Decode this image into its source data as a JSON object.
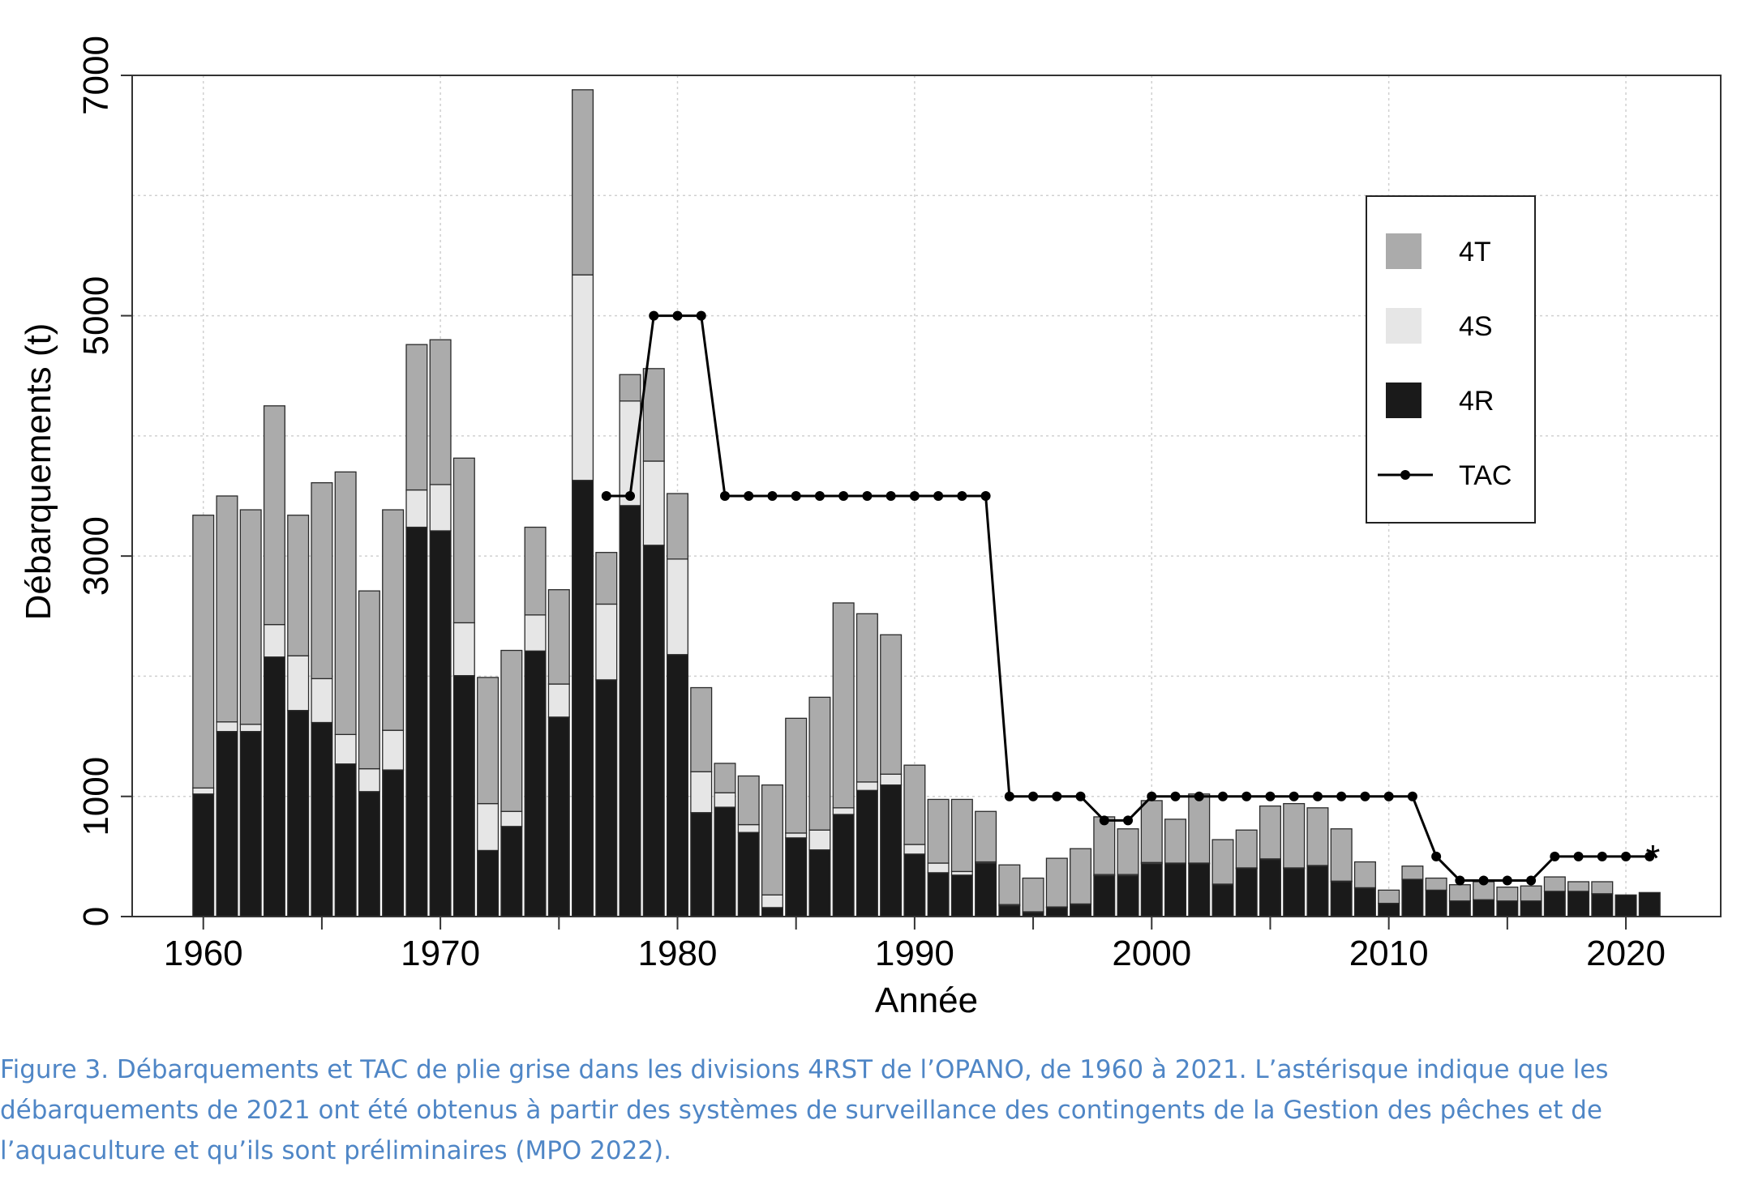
{
  "chart_data": {
    "type": "bar",
    "stacked": true,
    "y_label": "Débarquements (t)",
    "x_label": "Année",
    "caption": "Figure 3. Débarquements et TAC de plie grise dans les divisions 4RST de l’OPANO, de 1960 à 2021. L’astérisque indique que les débarquements de 2021 ont été obtenus à partir des systèmes de surveillance des contingents de la Gestion des pêches et de l’aquaculture et qu’ils sont préliminaires (MPO 2022).",
    "annotation": "*",
    "x": [
      1960,
      1961,
      1962,
      1963,
      1964,
      1965,
      1966,
      1967,
      1968,
      1969,
      1970,
      1971,
      1972,
      1973,
      1974,
      1975,
      1976,
      1977,
      1978,
      1979,
      1980,
      1981,
      1982,
      1983,
      1984,
      1985,
      1986,
      1987,
      1988,
      1989,
      1990,
      1991,
      1992,
      1993,
      1994,
      1995,
      1996,
      1997,
      1998,
      1999,
      2000,
      2001,
      2002,
      2003,
      2004,
      2005,
      2006,
      2007,
      2008,
      2009,
      2010,
      2011,
      2012,
      2013,
      2014,
      2015,
      2016,
      2017,
      2018,
      2019,
      2020,
      2021
    ],
    "series": [
      {
        "name": "4T",
        "color": "#ababab",
        "values": [
          2270,
          1880,
          1785,
          1820,
          1170,
          1630,
          2185,
          1480,
          1835,
          1210,
          1205,
          1370,
          1050,
          1340,
          730,
          785,
          1540,
          430,
          220,
          770,
          545,
          700,
          245,
          405,
          915,
          955,
          1105,
          1705,
          1400,
          1160,
          660,
          530,
          600,
          420,
          330,
          280,
          405,
          460,
          480,
          380,
          515,
          365,
          575,
          370,
          315,
          440,
          535,
          480,
          435,
          215,
          110,
          110,
          100,
          135,
          150,
          115,
          125,
          120,
          80,
          100,
          0,
          0
        ]
      },
      {
        "name": "4S",
        "color": "#e6e6e6",
        "values": [
          50,
          80,
          60,
          270,
          455,
          365,
          245,
          190,
          330,
          310,
          385,
          440,
          390,
          125,
          300,
          275,
          1710,
          630,
          870,
          700,
          795,
          340,
          120,
          65,
          105,
          40,
          165,
          55,
          70,
          90,
          80,
          80,
          30,
          10,
          10,
          5,
          5,
          5,
          10,
          10,
          10,
          5,
          5,
          5,
          5,
          5,
          5,
          5,
          5,
          5,
          0,
          0,
          0,
          0,
          0,
          0,
          0,
          0,
          0,
          0,
          0,
          0
        ]
      },
      {
        "name": "4R",
        "color": "#1a1a1a",
        "values": [
          1020,
          1540,
          1540,
          2160,
          1715,
          1615,
          1270,
          1040,
          1220,
          3240,
          3210,
          2005,
          550,
          750,
          2210,
          1660,
          3630,
          1970,
          3420,
          3090,
          2180,
          865,
          910,
          700,
          75,
          655,
          555,
          850,
          1050,
          1095,
          520,
          365,
          345,
          445,
          90,
          35,
          75,
          100,
          340,
          340,
          440,
          440,
          440,
          265,
          400,
          475,
          400,
          420,
          290,
          235,
          110,
          310,
          220,
          130,
          140,
          130,
          130,
          210,
          210,
          190,
          180,
          200
        ]
      },
      {
        "name": "TAC",
        "type": "line",
        "color": "#000000",
        "values": [
          null,
          null,
          null,
          null,
          null,
          null,
          null,
          null,
          null,
          null,
          null,
          null,
          null,
          null,
          null,
          null,
          null,
          3500,
          3500,
          5000,
          5000,
          5000,
          3500,
          3500,
          3500,
          3500,
          3500,
          3500,
          3500,
          3500,
          3500,
          3500,
          3500,
          3500,
          1000,
          1000,
          1000,
          1000,
          800,
          800,
          1000,
          1000,
          1000,
          1000,
          1000,
          1000,
          1000,
          1000,
          1000,
          1000,
          1000,
          1000,
          500,
          300,
          300,
          300,
          300,
          500,
          500,
          500,
          500,
          500
        ]
      }
    ],
    "xlim": [
      1957,
      2024
    ],
    "xticks": [
      1960,
      1970,
      1980,
      1990,
      2000,
      2010,
      2020
    ],
    "x_minor_ticks": [
      1965,
      1975,
      1985,
      1995,
      2005,
      2015
    ],
    "ylim": [
      0,
      7000
    ],
    "yticks": [
      0,
      1000,
      3000,
      5000,
      7000
    ],
    "y_grid": [
      0,
      1000,
      2000,
      3000,
      4000,
      5000,
      6000,
      7000
    ],
    "grid": true,
    "legend": "upper right"
  }
}
